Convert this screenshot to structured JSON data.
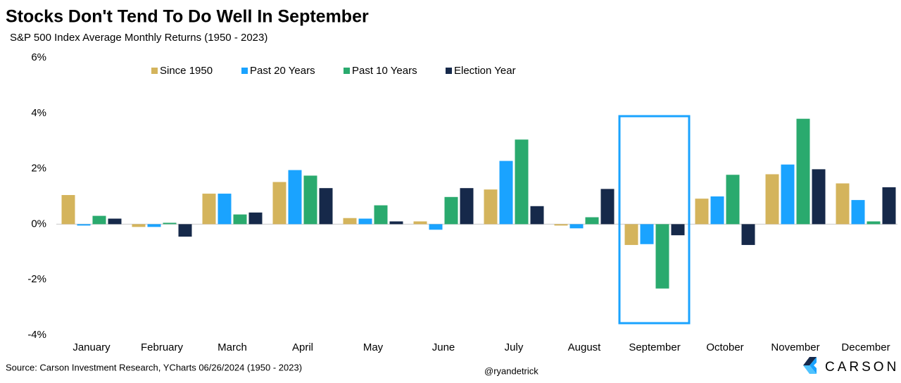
{
  "chart_data": {
    "type": "bar",
    "title": "Stocks Don't Tend To Do Well In September",
    "subtitle": "S&P 500 Index Average Monthly Returns (1950 - 2023)",
    "source": "Source: Carson Investment Research, YCharts 06/26/2024 (1950 - 2023)",
    "credit": "@ryandetrick",
    "brand": "CARSON",
    "categories": [
      "January",
      "February",
      "March",
      "April",
      "May",
      "June",
      "July",
      "August",
      "September",
      "October",
      "November",
      "December"
    ],
    "series": [
      {
        "name": "Since 1950",
        "color": "#d4b45c",
        "values": [
          1.05,
          -0.1,
          1.1,
          1.52,
          0.22,
          0.1,
          1.25,
          -0.05,
          -0.75,
          0.92,
          1.8,
          1.47
        ]
      },
      {
        "name": "Past 20 Years",
        "color": "#1aa3ff",
        "values": [
          -0.05,
          -0.1,
          1.1,
          1.95,
          0.2,
          -0.2,
          2.28,
          -0.15,
          -0.72,
          1.0,
          2.15,
          0.87
        ]
      },
      {
        "name": "Past 10 Years",
        "color": "#2aaa6e",
        "values": [
          0.3,
          0.05,
          0.35,
          1.75,
          0.68,
          0.98,
          3.05,
          0.25,
          -2.32,
          1.78,
          3.8,
          0.1
        ]
      },
      {
        "name": "Election Year",
        "color": "#16294a",
        "values": [
          0.2,
          -0.45,
          0.42,
          1.3,
          0.1,
          1.3,
          0.65,
          1.27,
          -0.4,
          -0.75,
          1.98,
          1.33
        ]
      }
    ],
    "ylim": [
      -4,
      6
    ],
    "yticks": [
      {
        "value": -4,
        "label": "-4%"
      },
      {
        "value": -2,
        "label": "-2%"
      },
      {
        "value": 0,
        "label": "0%"
      },
      {
        "value": 2,
        "label": "2%"
      },
      {
        "value": 4,
        "label": "4%"
      },
      {
        "value": 6,
        "label": "6%"
      }
    ],
    "highlight": "September"
  }
}
